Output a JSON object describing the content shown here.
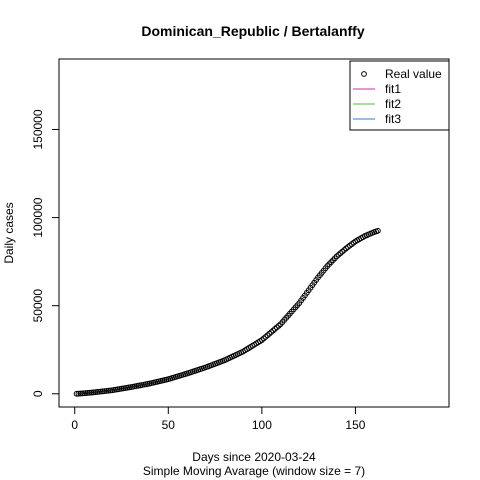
{
  "chart_data": {
    "type": "scatter",
    "title": "Dominican_Republic / Bertalanffy",
    "xlabel": "Days since 2020-03-24",
    "subtitle": "Simple Moving Avarage (window size = 7)",
    "ylabel": "Daily cases",
    "xlim": [
      -8.4,
      200
    ],
    "ylim": [
      -7500,
      190000
    ],
    "x_ticks": [
      0,
      50,
      100,
      150
    ],
    "y_ticks": [
      0,
      50000,
      100000,
      150000
    ],
    "x_tick_labels": [
      "0",
      "50",
      "100",
      "150"
    ],
    "y_tick_labels": [
      "0",
      "50000",
      "100000",
      "150000"
    ],
    "grid": false,
    "legend_position": "top-right",
    "legend": [
      {
        "label": "Real value",
        "kind": "point",
        "color": "#000000"
      },
      {
        "label": "fit1",
        "kind": "line",
        "color": "#c0379a"
      },
      {
        "label": "fit2",
        "kind": "line",
        "color": "#4fb83a"
      },
      {
        "label": "fit3",
        "kind": "line",
        "color": "#2c7fd0"
      }
    ],
    "series": [
      {
        "name": "Real value",
        "color": "#000000",
        "anchors": [
          [
            1,
            0
          ],
          [
            5,
            300
          ],
          [
            10,
            800
          ],
          [
            20,
            2000
          ],
          [
            30,
            3800
          ],
          [
            40,
            5800
          ],
          [
            50,
            8300
          ],
          [
            60,
            11500
          ],
          [
            70,
            15000
          ],
          [
            80,
            19000
          ],
          [
            90,
            24000
          ],
          [
            100,
            30500
          ],
          [
            110,
            39500
          ],
          [
            120,
            51500
          ],
          [
            130,
            66000
          ],
          [
            135,
            72500
          ],
          [
            140,
            78000
          ],
          [
            145,
            82500
          ],
          [
            150,
            86500
          ],
          [
            155,
            89500
          ],
          [
            160,
            91800
          ],
          [
            162,
            92500
          ]
        ],
        "x_range": [
          1,
          162
        ]
      }
    ]
  }
}
